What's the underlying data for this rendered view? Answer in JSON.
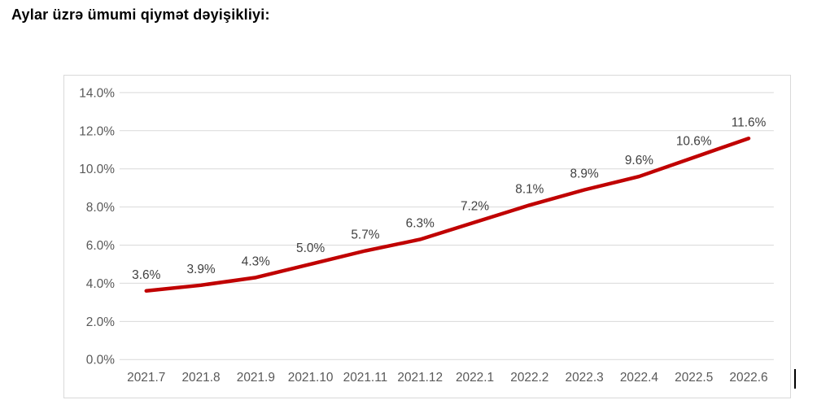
{
  "page": {
    "title": "Aylar üzrə ümumi qiymət dəyişikliyi:"
  },
  "chart_data": {
    "type": "line",
    "title": "",
    "xlabel": "",
    "ylabel": "",
    "categories": [
      "2021.7",
      "2021.8",
      "2021.9",
      "2021.10",
      "2021.11",
      "2021.12",
      "2022.1",
      "2022.2",
      "2022.3",
      "2022.4",
      "2022.5",
      "2022.6"
    ],
    "values": [
      3.6,
      3.9,
      4.3,
      5.0,
      5.7,
      6.3,
      7.2,
      8.1,
      8.9,
      9.6,
      10.6,
      11.6
    ],
    "data_labels": [
      "3.6%",
      "3.9%",
      "4.3%",
      "5.0%",
      "5.7%",
      "6.3%",
      "7.2%",
      "8.1%",
      "8.9%",
      "9.6%",
      "10.6%",
      "11.6%"
    ],
    "y_ticks": [
      "0.0%",
      "2.0%",
      "4.0%",
      "6.0%",
      "8.0%",
      "10.0%",
      "12.0%",
      "14.0%"
    ],
    "ylim": [
      0,
      14
    ],
    "y_step": 2,
    "grid": true,
    "legend_position": "none",
    "colors": {
      "line": "#c00000",
      "grid": "#d9d9d9",
      "axis_labels": "#595959",
      "data_labels": "#404040",
      "frame_border": "#d9d9d9"
    }
  }
}
